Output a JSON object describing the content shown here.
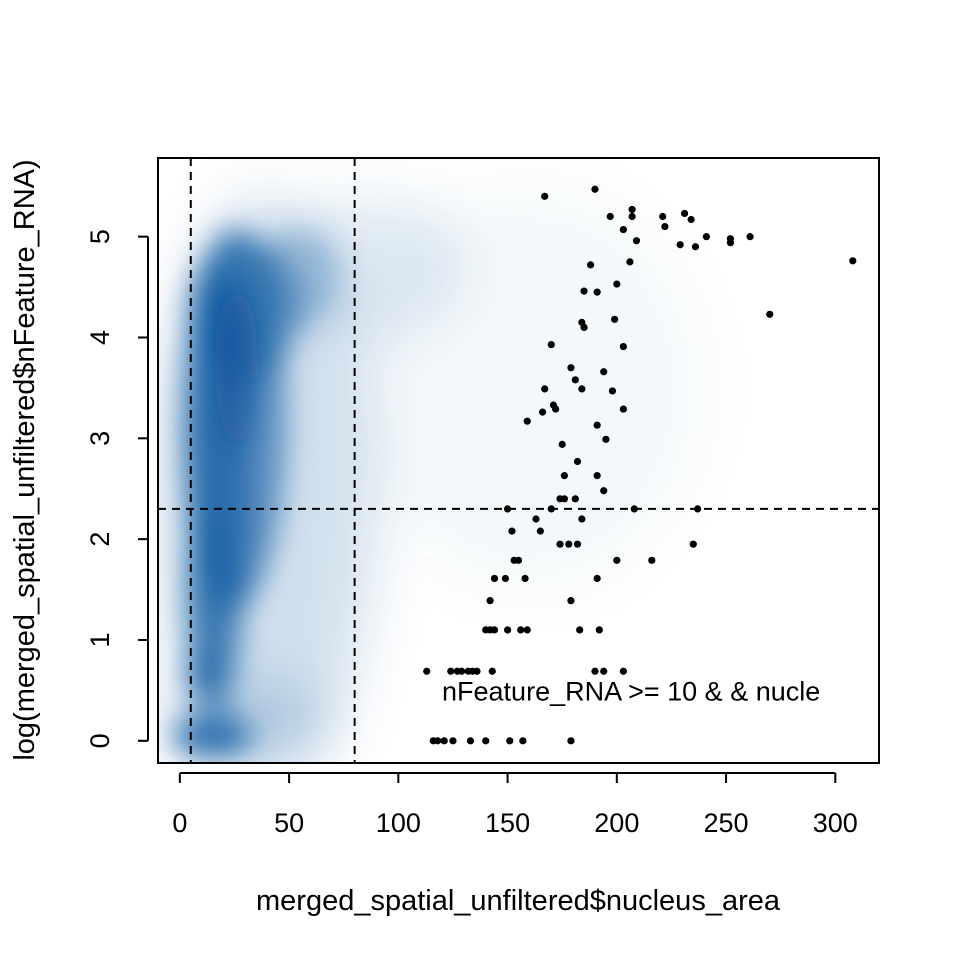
{
  "chart_data": {
    "type": "scatter",
    "style": "smoothScatter density with outlier points",
    "xlabel": "merged_spatial_unfiltered$nucleus_area",
    "ylabel": "log(merged_spatial_unfiltered$nFeature_RNA)",
    "xlim": [
      -10,
      320
    ],
    "ylim": [
      -0.22,
      5.78
    ],
    "x_ticks": [
      0,
      50,
      100,
      150,
      200,
      250,
      300
    ],
    "x_tick_labels": [
      "0",
      "50",
      "100",
      "150",
      "200",
      "250",
      "300"
    ],
    "y_ticks": [
      0,
      1,
      2,
      3,
      4,
      5
    ],
    "y_tick_labels": [
      "0",
      "1",
      "2",
      "3",
      "4",
      "5"
    ],
    "grid": false,
    "density_color": "#08519c",
    "point_color": "#000000",
    "reference_lines": [
      {
        "orientation": "vertical",
        "value": 5,
        "style": "dashed"
      },
      {
        "orientation": "vertical",
        "value": 80,
        "style": "dashed"
      },
      {
        "orientation": "horizontal",
        "value": 2.3,
        "style": "dashed"
      }
    ],
    "annotation": {
      "text": "nFeature_RNA >= 10 & & nucle",
      "x": 120,
      "y": 0.5
    },
    "points": [
      {
        "x": 167,
        "y": 5.4
      },
      {
        "x": 190,
        "y": 5.47
      },
      {
        "x": 197,
        "y": 5.2
      },
      {
        "x": 207,
        "y": 5.27
      },
      {
        "x": 207,
        "y": 5.2
      },
      {
        "x": 203,
        "y": 5.07
      },
      {
        "x": 209,
        "y": 4.96
      },
      {
        "x": 206,
        "y": 4.75
      },
      {
        "x": 221,
        "y": 5.2
      },
      {
        "x": 222,
        "y": 5.1
      },
      {
        "x": 229,
        "y": 4.92
      },
      {
        "x": 231,
        "y": 5.23
      },
      {
        "x": 234,
        "y": 5.17
      },
      {
        "x": 236,
        "y": 4.9
      },
      {
        "x": 241,
        "y": 5.0
      },
      {
        "x": 252,
        "y": 4.98
      },
      {
        "x": 252,
        "y": 4.94
      },
      {
        "x": 261,
        "y": 5.0
      },
      {
        "x": 308,
        "y": 4.76
      },
      {
        "x": 270,
        "y": 4.23
      },
      {
        "x": 188,
        "y": 4.72
      },
      {
        "x": 185,
        "y": 4.46
      },
      {
        "x": 191,
        "y": 4.45
      },
      {
        "x": 200,
        "y": 4.53
      },
      {
        "x": 184,
        "y": 4.15
      },
      {
        "x": 185,
        "y": 4.1
      },
      {
        "x": 199,
        "y": 4.18
      },
      {
        "x": 170,
        "y": 3.93
      },
      {
        "x": 203,
        "y": 3.91
      },
      {
        "x": 179,
        "y": 3.7
      },
      {
        "x": 181,
        "y": 3.58
      },
      {
        "x": 194,
        "y": 3.66
      },
      {
        "x": 167,
        "y": 3.49
      },
      {
        "x": 184,
        "y": 3.49
      },
      {
        "x": 198,
        "y": 3.47
      },
      {
        "x": 171,
        "y": 3.33
      },
      {
        "x": 172,
        "y": 3.29
      },
      {
        "x": 166,
        "y": 3.26
      },
      {
        "x": 203,
        "y": 3.29
      },
      {
        "x": 159,
        "y": 3.17
      },
      {
        "x": 191,
        "y": 3.13
      },
      {
        "x": 175,
        "y": 2.94
      },
      {
        "x": 195,
        "y": 2.99
      },
      {
        "x": 182,
        "y": 2.77
      },
      {
        "x": 176,
        "y": 2.63
      },
      {
        "x": 191,
        "y": 2.63
      },
      {
        "x": 194,
        "y": 2.48
      },
      {
        "x": 174,
        "y": 2.4
      },
      {
        "x": 176,
        "y": 2.4
      },
      {
        "x": 181,
        "y": 2.4
      },
      {
        "x": 150,
        "y": 2.3
      },
      {
        "x": 170,
        "y": 2.3
      },
      {
        "x": 208,
        "y": 2.3
      },
      {
        "x": 237,
        "y": 2.3
      },
      {
        "x": 163,
        "y": 2.2
      },
      {
        "x": 184,
        "y": 2.2
      },
      {
        "x": 152,
        "y": 2.08
      },
      {
        "x": 165,
        "y": 2.08
      },
      {
        "x": 174,
        "y": 1.95
      },
      {
        "x": 178,
        "y": 1.95
      },
      {
        "x": 182,
        "y": 1.95
      },
      {
        "x": 235,
        "y": 1.95
      },
      {
        "x": 153,
        "y": 1.79
      },
      {
        "x": 155,
        "y": 1.79
      },
      {
        "x": 200,
        "y": 1.79
      },
      {
        "x": 216,
        "y": 1.79
      },
      {
        "x": 144,
        "y": 1.61
      },
      {
        "x": 149,
        "y": 1.61
      },
      {
        "x": 158,
        "y": 1.61
      },
      {
        "x": 191,
        "y": 1.61
      },
      {
        "x": 142,
        "y": 1.39
      },
      {
        "x": 179,
        "y": 1.39
      },
      {
        "x": 140,
        "y": 1.1
      },
      {
        "x": 142,
        "y": 1.1
      },
      {
        "x": 144,
        "y": 1.1
      },
      {
        "x": 150,
        "y": 1.1
      },
      {
        "x": 156,
        "y": 1.1
      },
      {
        "x": 159,
        "y": 1.1
      },
      {
        "x": 183,
        "y": 1.1
      },
      {
        "x": 192,
        "y": 1.1
      },
      {
        "x": 113,
        "y": 0.69
      },
      {
        "x": 124,
        "y": 0.69
      },
      {
        "x": 127,
        "y": 0.69
      },
      {
        "x": 129,
        "y": 0.69
      },
      {
        "x": 132,
        "y": 0.69
      },
      {
        "x": 134,
        "y": 0.69
      },
      {
        "x": 136,
        "y": 0.69
      },
      {
        "x": 143,
        "y": 0.69
      },
      {
        "x": 190,
        "y": 0.69
      },
      {
        "x": 194,
        "y": 0.69
      },
      {
        "x": 203,
        "y": 0.69
      },
      {
        "x": 116,
        "y": 0.0
      },
      {
        "x": 118,
        "y": 0.0
      },
      {
        "x": 121,
        "y": 0.0
      },
      {
        "x": 125,
        "y": 0.0
      },
      {
        "x": 133,
        "y": 0.0
      },
      {
        "x": 140,
        "y": 0.0
      },
      {
        "x": 151,
        "y": 0.0
      },
      {
        "x": 157,
        "y": 0.0
      },
      {
        "x": 179,
        "y": 0.0
      }
    ]
  }
}
